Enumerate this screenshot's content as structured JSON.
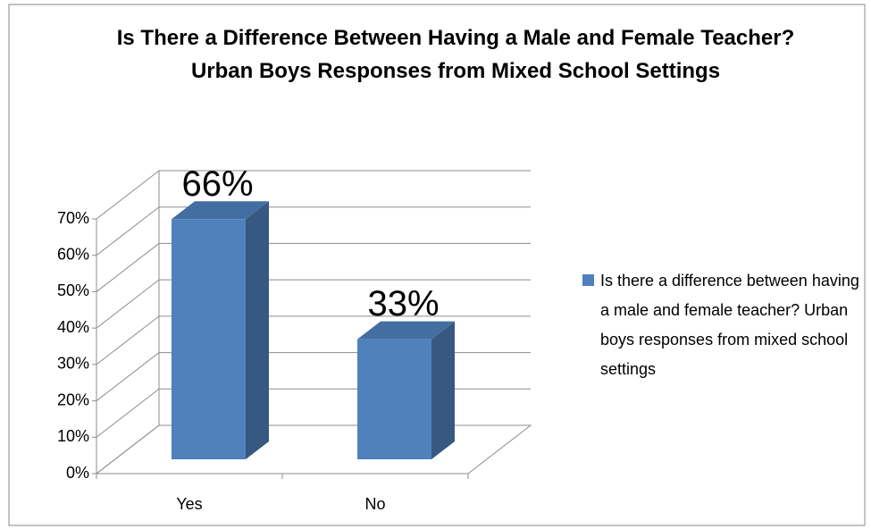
{
  "chart_data": {
    "type": "bar3d",
    "title": "Is There a Difference Between Having a Male and Female Teacher? Urban Boys Responses from Mixed School Settings",
    "categories": [
      "Yes",
      "No"
    ],
    "series": [
      {
        "name": "Is there a difference between having a male and female teacher? Urban boys responses from mixed school settings",
        "color": "#4f81bd",
        "values": [
          66,
          33
        ],
        "value_labels": [
          "66%",
          "33%"
        ]
      }
    ],
    "ylim": [
      0,
      70
    ],
    "yticks": [
      {
        "value": 0,
        "label": "0%"
      },
      {
        "value": 10,
        "label": "10%"
      },
      {
        "value": 20,
        "label": "20%"
      },
      {
        "value": 30,
        "label": "30%"
      },
      {
        "value": 40,
        "label": "40%"
      },
      {
        "value": 50,
        "label": "50%"
      },
      {
        "value": 60,
        "label": "60%"
      },
      {
        "value": 70,
        "label": "70%"
      }
    ],
    "grid": true,
    "legend": "right"
  }
}
